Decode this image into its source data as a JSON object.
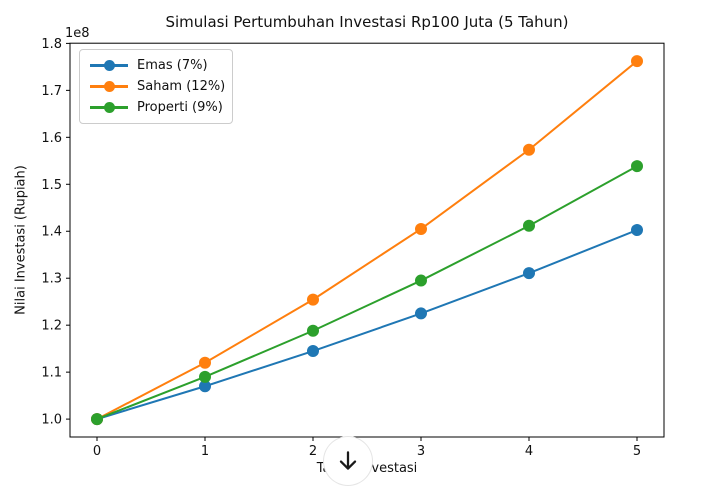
{
  "chart_data": {
    "type": "line",
    "title": "Simulasi Pertumbuhan Investasi Rp100 Juta (5 Tahun)",
    "xlabel": "Tahun Investasi",
    "ylabel": "Nilai Investasi (Rupiah)",
    "y_offset_text": "1e8",
    "value_scale": "1e8",
    "x": [
      0,
      1,
      2,
      3,
      4,
      5
    ],
    "xtick_labels": [
      "0",
      "1",
      "2",
      "3",
      "4",
      "5"
    ],
    "ytick_values": [
      1.0,
      1.1,
      1.2,
      1.3,
      1.4,
      1.5,
      1.6,
      1.7,
      1.8
    ],
    "ytick_labels": [
      "1.0",
      "1.1",
      "1.2",
      "1.3",
      "1.4",
      "1.5",
      "1.6",
      "1.7",
      "1.8"
    ],
    "xlim": [
      -0.25,
      5.25
    ],
    "ylim": [
      0.9619,
      1.8004
    ],
    "grid": false,
    "legend_position": "upper left",
    "series": [
      {
        "name": "Emas (7%)",
        "color": "#1f77b4",
        "values": [
          1.0,
          1.07,
          1.1449,
          1.225,
          1.3108,
          1.4026
        ]
      },
      {
        "name": "Saham (12%)",
        "color": "#ff7f0e",
        "values": [
          1.0,
          1.12,
          1.2544,
          1.4049,
          1.5735,
          1.7623
        ]
      },
      {
        "name": "Properti (9%)",
        "color": "#2ca02c",
        "values": [
          1.0,
          1.09,
          1.1881,
          1.295,
          1.4116,
          1.5386
        ]
      }
    ]
  },
  "overlay": {
    "scroll_down_button": {
      "icon": "down-arrow"
    }
  }
}
